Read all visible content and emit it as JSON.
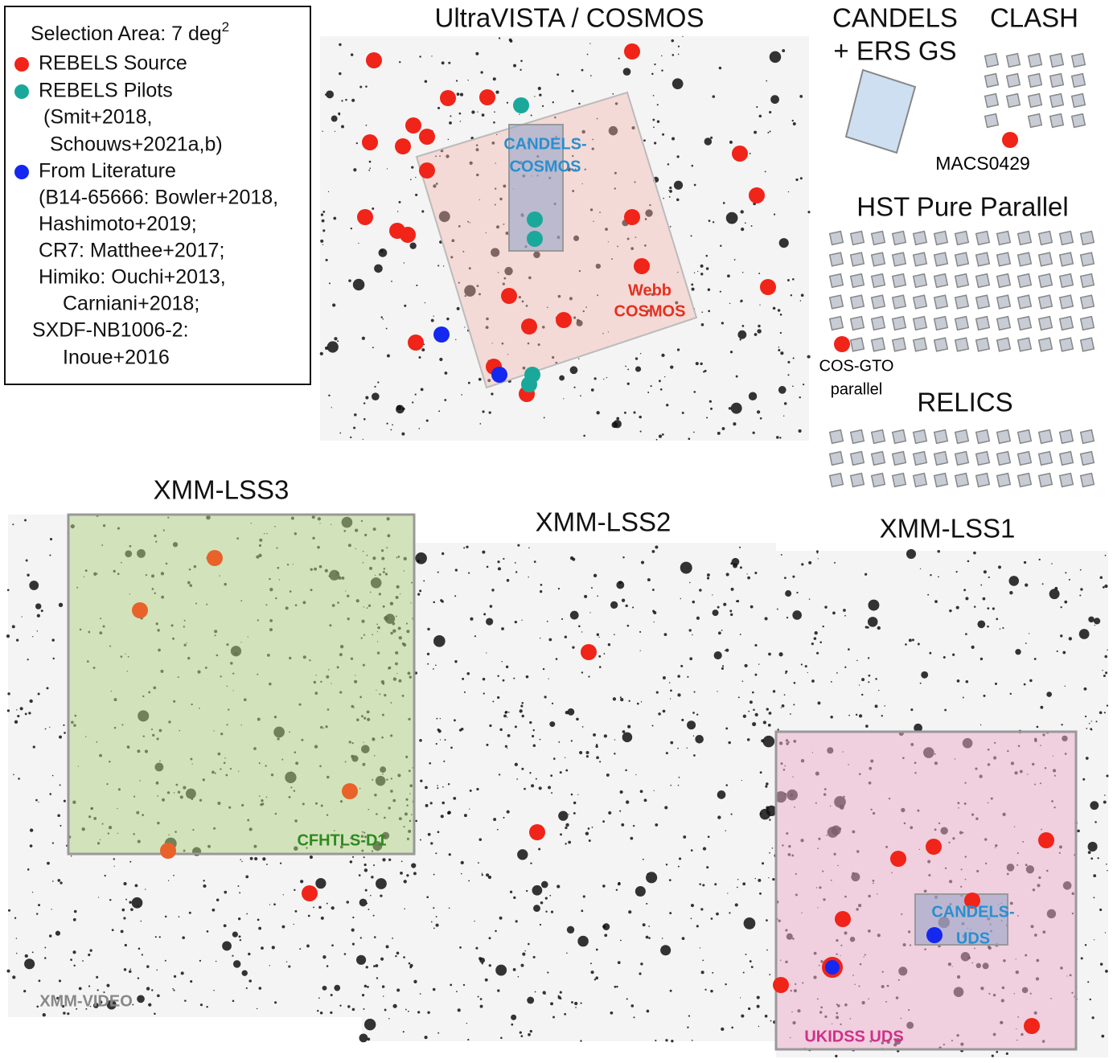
{
  "legend": {
    "title": "Selection Area: 7 deg",
    "title_sup": "2",
    "entries": [
      "REBELS Source",
      "REBELS Pilots",
      "(Smit+2018,",
      "Schouws+2021a,b)",
      "From Literature",
      "(B14-65666: Bowler+2018,",
      "Hashimoto+2019;",
      "CR7: Matthee+2017;",
      "Himiko: Ouchi+2013,",
      "Carniani+2018;",
      "SXDF-NB1006-2:",
      "Inoue+2016"
    ]
  },
  "cosmos": {
    "title": "UltraVISTA / COSMOS",
    "candels": [
      "CANDELS-",
      "COSMOS"
    ],
    "webb": [
      "Webb",
      "COSMOS"
    ]
  },
  "candels_ers": {
    "title": [
      "CANDELS",
      "+ ERS GS"
    ]
  },
  "clash": {
    "title": "CLASH",
    "label": "MACS0429"
  },
  "hst_pure_parallel": {
    "title": "HST Pure Parallel",
    "label": [
      "COS-GTO",
      "parallel"
    ]
  },
  "relics": {
    "title": "RELICS"
  },
  "xmm_lss3": {
    "title": "XMM-LSS3",
    "cfhtls": "CFHTLS-D1",
    "video": "XMM-VIDEO"
  },
  "xmm_lss2": {
    "title": "XMM-LSS2"
  },
  "xmm_lss1": {
    "title": "XMM-LSS1",
    "candels": [
      "CANDELS-",
      "UDS"
    ],
    "ukidss": "UKIDSS UDS"
  }
}
